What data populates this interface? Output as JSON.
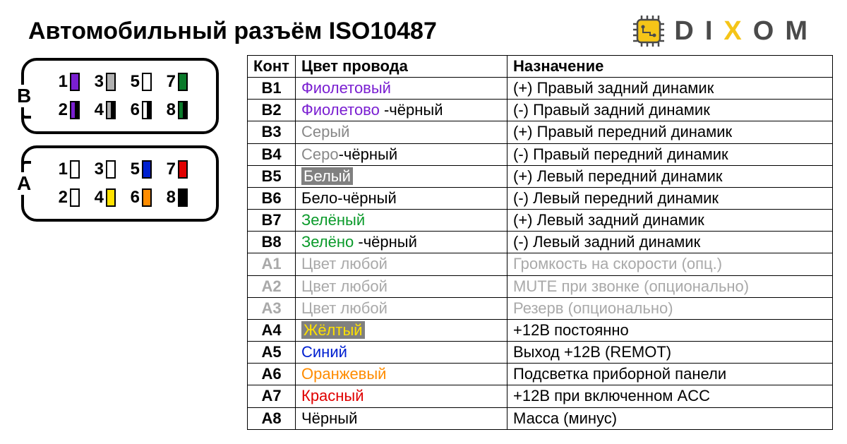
{
  "title": "Автомобильный разъём ISO10487",
  "logo": {
    "letters": [
      "D",
      "I",
      "X",
      "O",
      "M"
    ],
    "colors": [
      "#4a4a4a",
      "#4a4a4a",
      "#f5c518",
      "#4a4a4a",
      "#4a4a4a"
    ],
    "chip_body": "#f5c518",
    "chip_stroke": "#4a4a4a"
  },
  "connector": {
    "blocks": [
      {
        "label": "B",
        "notch": "bottom",
        "rows": [
          [
            {
              "n": "1",
              "c1": "#7a1fd1",
              "c2": "#7a1fd1"
            },
            {
              "n": "3",
              "c1": "#b0b0b0",
              "c2": "#b0b0b0"
            },
            {
              "n": "5",
              "c1": "#ffffff",
              "c2": "#ffffff"
            },
            {
              "n": "7",
              "c1": "#0a7a2a",
              "c2": "#0a7a2a"
            }
          ],
          [
            {
              "n": "2",
              "c1": "#7a1fd1",
              "c2": "#000000"
            },
            {
              "n": "4",
              "c1": "#b0b0b0",
              "c2": "#000000"
            },
            {
              "n": "6",
              "c1": "#ffffff",
              "c2": "#000000"
            },
            {
              "n": "8",
              "c1": "#0a7a2a",
              "c2": "#000000"
            }
          ]
        ]
      },
      {
        "label": "A",
        "notch": "top",
        "rows": [
          [
            {
              "n": "1",
              "c1": "#ffffff",
              "c2": "#ffffff"
            },
            {
              "n": "3",
              "c1": "#ffffff",
              "c2": "#ffffff"
            },
            {
              "n": "5",
              "c1": "#0020d0",
              "c2": "#0020d0"
            },
            {
              "n": "7",
              "c1": "#e00000",
              "c2": "#e00000"
            }
          ],
          [
            {
              "n": "2",
              "c1": "#ffffff",
              "c2": "#ffffff"
            },
            {
              "n": "4",
              "c1": "#ffe100",
              "c2": "#ffe100"
            },
            {
              "n": "6",
              "c1": "#ff8c00",
              "c2": "#ff8c00"
            },
            {
              "n": "8",
              "c1": "#000000",
              "c2": "#000000"
            }
          ]
        ]
      }
    ]
  },
  "table": {
    "headers": [
      "Конт",
      "Цвет провода",
      "Назначение"
    ],
    "rows": [
      {
        "pin": "B1",
        "faded": false,
        "color_parts": [
          {
            "t": "Фиолетовый",
            "c": "#7a1fd1"
          }
        ],
        "func": "(+) Правый задний динамик"
      },
      {
        "pin": "B2",
        "faded": false,
        "color_parts": [
          {
            "t": "Фиолетово ",
            "c": "#7a1fd1"
          },
          {
            "t": "-чёрный",
            "c": "#000000"
          }
        ],
        "func": "(-)  Правый задний динамик"
      },
      {
        "pin": "B3",
        "faded": false,
        "color_parts": [
          {
            "t": "Серый",
            "c": "#888888"
          }
        ],
        "func": "(+) Правый передний динамик"
      },
      {
        "pin": "B4",
        "faded": false,
        "color_parts": [
          {
            "t": "Серо",
            "c": "#888888"
          },
          {
            "t": "-чёрный",
            "c": "#000000"
          }
        ],
        "func": "(-)  Правый передний динамик"
      },
      {
        "pin": "B5",
        "faded": false,
        "color_parts": [
          {
            "t": "Белый",
            "c": "#ffffff",
            "hl": true
          }
        ],
        "func": "(+) Левый передний динамик"
      },
      {
        "pin": "B6",
        "faded": false,
        "color_parts": [
          {
            "t": "Бело",
            "c": "#000000"
          },
          {
            "t": "-чёрный",
            "c": "#000000"
          }
        ],
        "func": "(-)  Левый передний динамик"
      },
      {
        "pin": "B7",
        "faded": false,
        "color_parts": [
          {
            "t": "Зелёный",
            "c": "#0a9a2a"
          }
        ],
        "func": "(+) Левый задний динамик"
      },
      {
        "pin": "B8",
        "faded": false,
        "color_parts": [
          {
            "t": "Зелёно ",
            "c": "#0a9a2a"
          },
          {
            "t": "-чёрный",
            "c": "#000000"
          }
        ],
        "func": "(-)  Левый задний динамик"
      },
      {
        "pin": "A1",
        "faded": true,
        "color_parts": [
          {
            "t": "Цвет любой",
            "c": "#a9a9a9"
          }
        ],
        "func": "Громкость на скорости (опц.)"
      },
      {
        "pin": "A2",
        "faded": true,
        "color_parts": [
          {
            "t": "Цвет любой",
            "c": "#a9a9a9"
          }
        ],
        "func": "MUTE при звонке (опционально)"
      },
      {
        "pin": "A3",
        "faded": true,
        "color_parts": [
          {
            "t": "Цвет любой",
            "c": "#a9a9a9"
          }
        ],
        "func": "Резерв (опционально)"
      },
      {
        "pin": "A4",
        "faded": false,
        "color_parts": [
          {
            "t": "Жёлтый",
            "c": "#ffe100",
            "hl": true
          }
        ],
        "func": "+12В постоянно"
      },
      {
        "pin": "A5",
        "faded": false,
        "color_parts": [
          {
            "t": "Синий",
            "c": "#0020d0"
          }
        ],
        "func": "Выход +12В (REMOT)"
      },
      {
        "pin": "A6",
        "faded": false,
        "color_parts": [
          {
            "t": "Оранжевый",
            "c": "#ff8c00"
          }
        ],
        "func": "Подсветка приборной панели"
      },
      {
        "pin": "A7",
        "faded": false,
        "color_parts": [
          {
            "t": "Красный",
            "c": "#e00000"
          }
        ],
        "func": "+12В при включенном ACC"
      },
      {
        "pin": "A8",
        "faded": false,
        "color_parts": [
          {
            "t": "Чёрный",
            "c": "#000000"
          }
        ],
        "func": "Масса (минус)"
      }
    ]
  }
}
